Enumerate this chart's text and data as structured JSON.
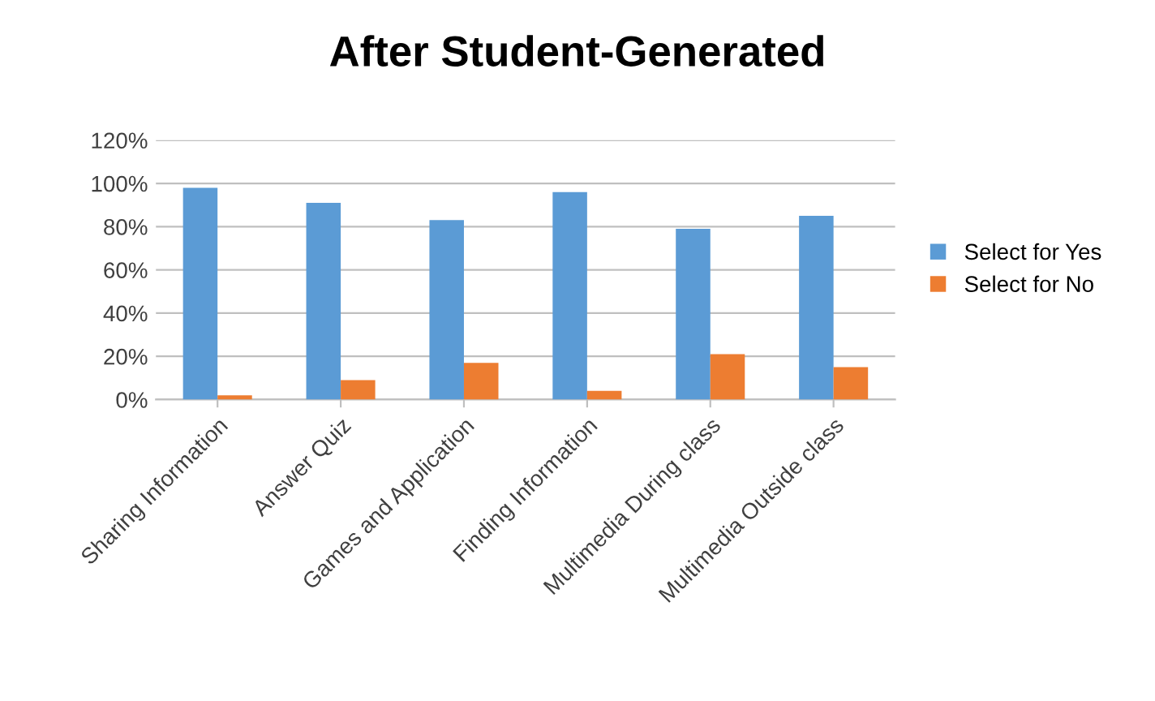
{
  "chart_data": {
    "type": "bar",
    "title": "After Student-Generated",
    "categories": [
      "Sharing Information",
      "Answer Quiz",
      "Games and Application",
      "Finding Information",
      "Multimedia During class",
      "Multimedia Outside class"
    ],
    "series": [
      {
        "name": "Select for Yes",
        "color": "#5b9bd5",
        "values": [
          98,
          91,
          83,
          96,
          79,
          85
        ]
      },
      {
        "name": "Select for No",
        "color": "#ed7d31",
        "values": [
          2,
          9,
          17,
          4,
          21,
          15
        ]
      }
    ],
    "ylim": [
      0,
      120
    ],
    "yticks": [
      {
        "value": 0,
        "label": "0%"
      },
      {
        "value": 20,
        "label": "20%"
      },
      {
        "value": 40,
        "label": "40%"
      },
      {
        "value": 60,
        "label": "60%"
      },
      {
        "value": 80,
        "label": "80%"
      },
      {
        "value": 100,
        "label": "100%"
      },
      {
        "value": 120,
        "label": "120%"
      }
    ],
    "grid": "y",
    "legend": "right"
  }
}
